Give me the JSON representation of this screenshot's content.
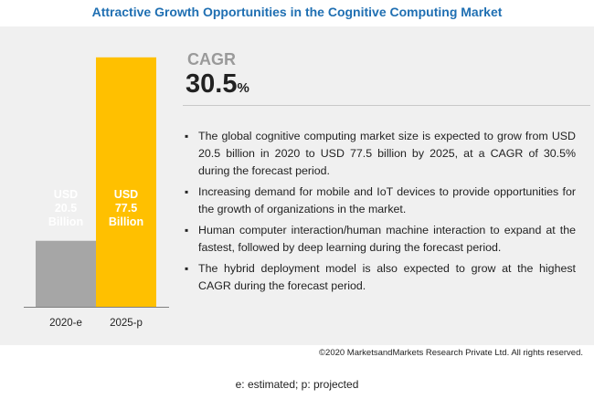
{
  "title": "Attractive Growth Opportunities in the Cognitive Computing Market",
  "chart_data": {
    "type": "bar",
    "categories": [
      "2020-e",
      "2025-p"
    ],
    "values": [
      20.5,
      77.5
    ],
    "bar_labels": [
      [
        "USD",
        "20.5",
        "Billion"
      ],
      [
        "USD",
        "77.5",
        "Billion"
      ]
    ],
    "colors": [
      "#a6a6a6",
      "#ffc000"
    ],
    "ylim": [
      0,
      80
    ]
  },
  "cagr": {
    "label": "CAGR",
    "value": "30.5",
    "unit": "%"
  },
  "bullets": [
    "The global cognitive computing market size is expected to grow from USD 20.5 billion in 2020 to USD 77.5 billion by 2025, at a CAGR of 30.5% during the forecast period.",
    "Increasing demand for mobile and IoT devices to provide opportunities for the growth of organizations in the market.",
    "Human computer interaction/human machine interaction to expand at the fastest, followed by deep learning during the forecast period.",
    "The hybrid deployment model is also expected to grow at the highest CAGR during the forecast period."
  ],
  "copyright": "©2020 MarketsandMarkets Research Private Ltd. All rights reserved.",
  "footnote": "e: estimated; p: projected"
}
